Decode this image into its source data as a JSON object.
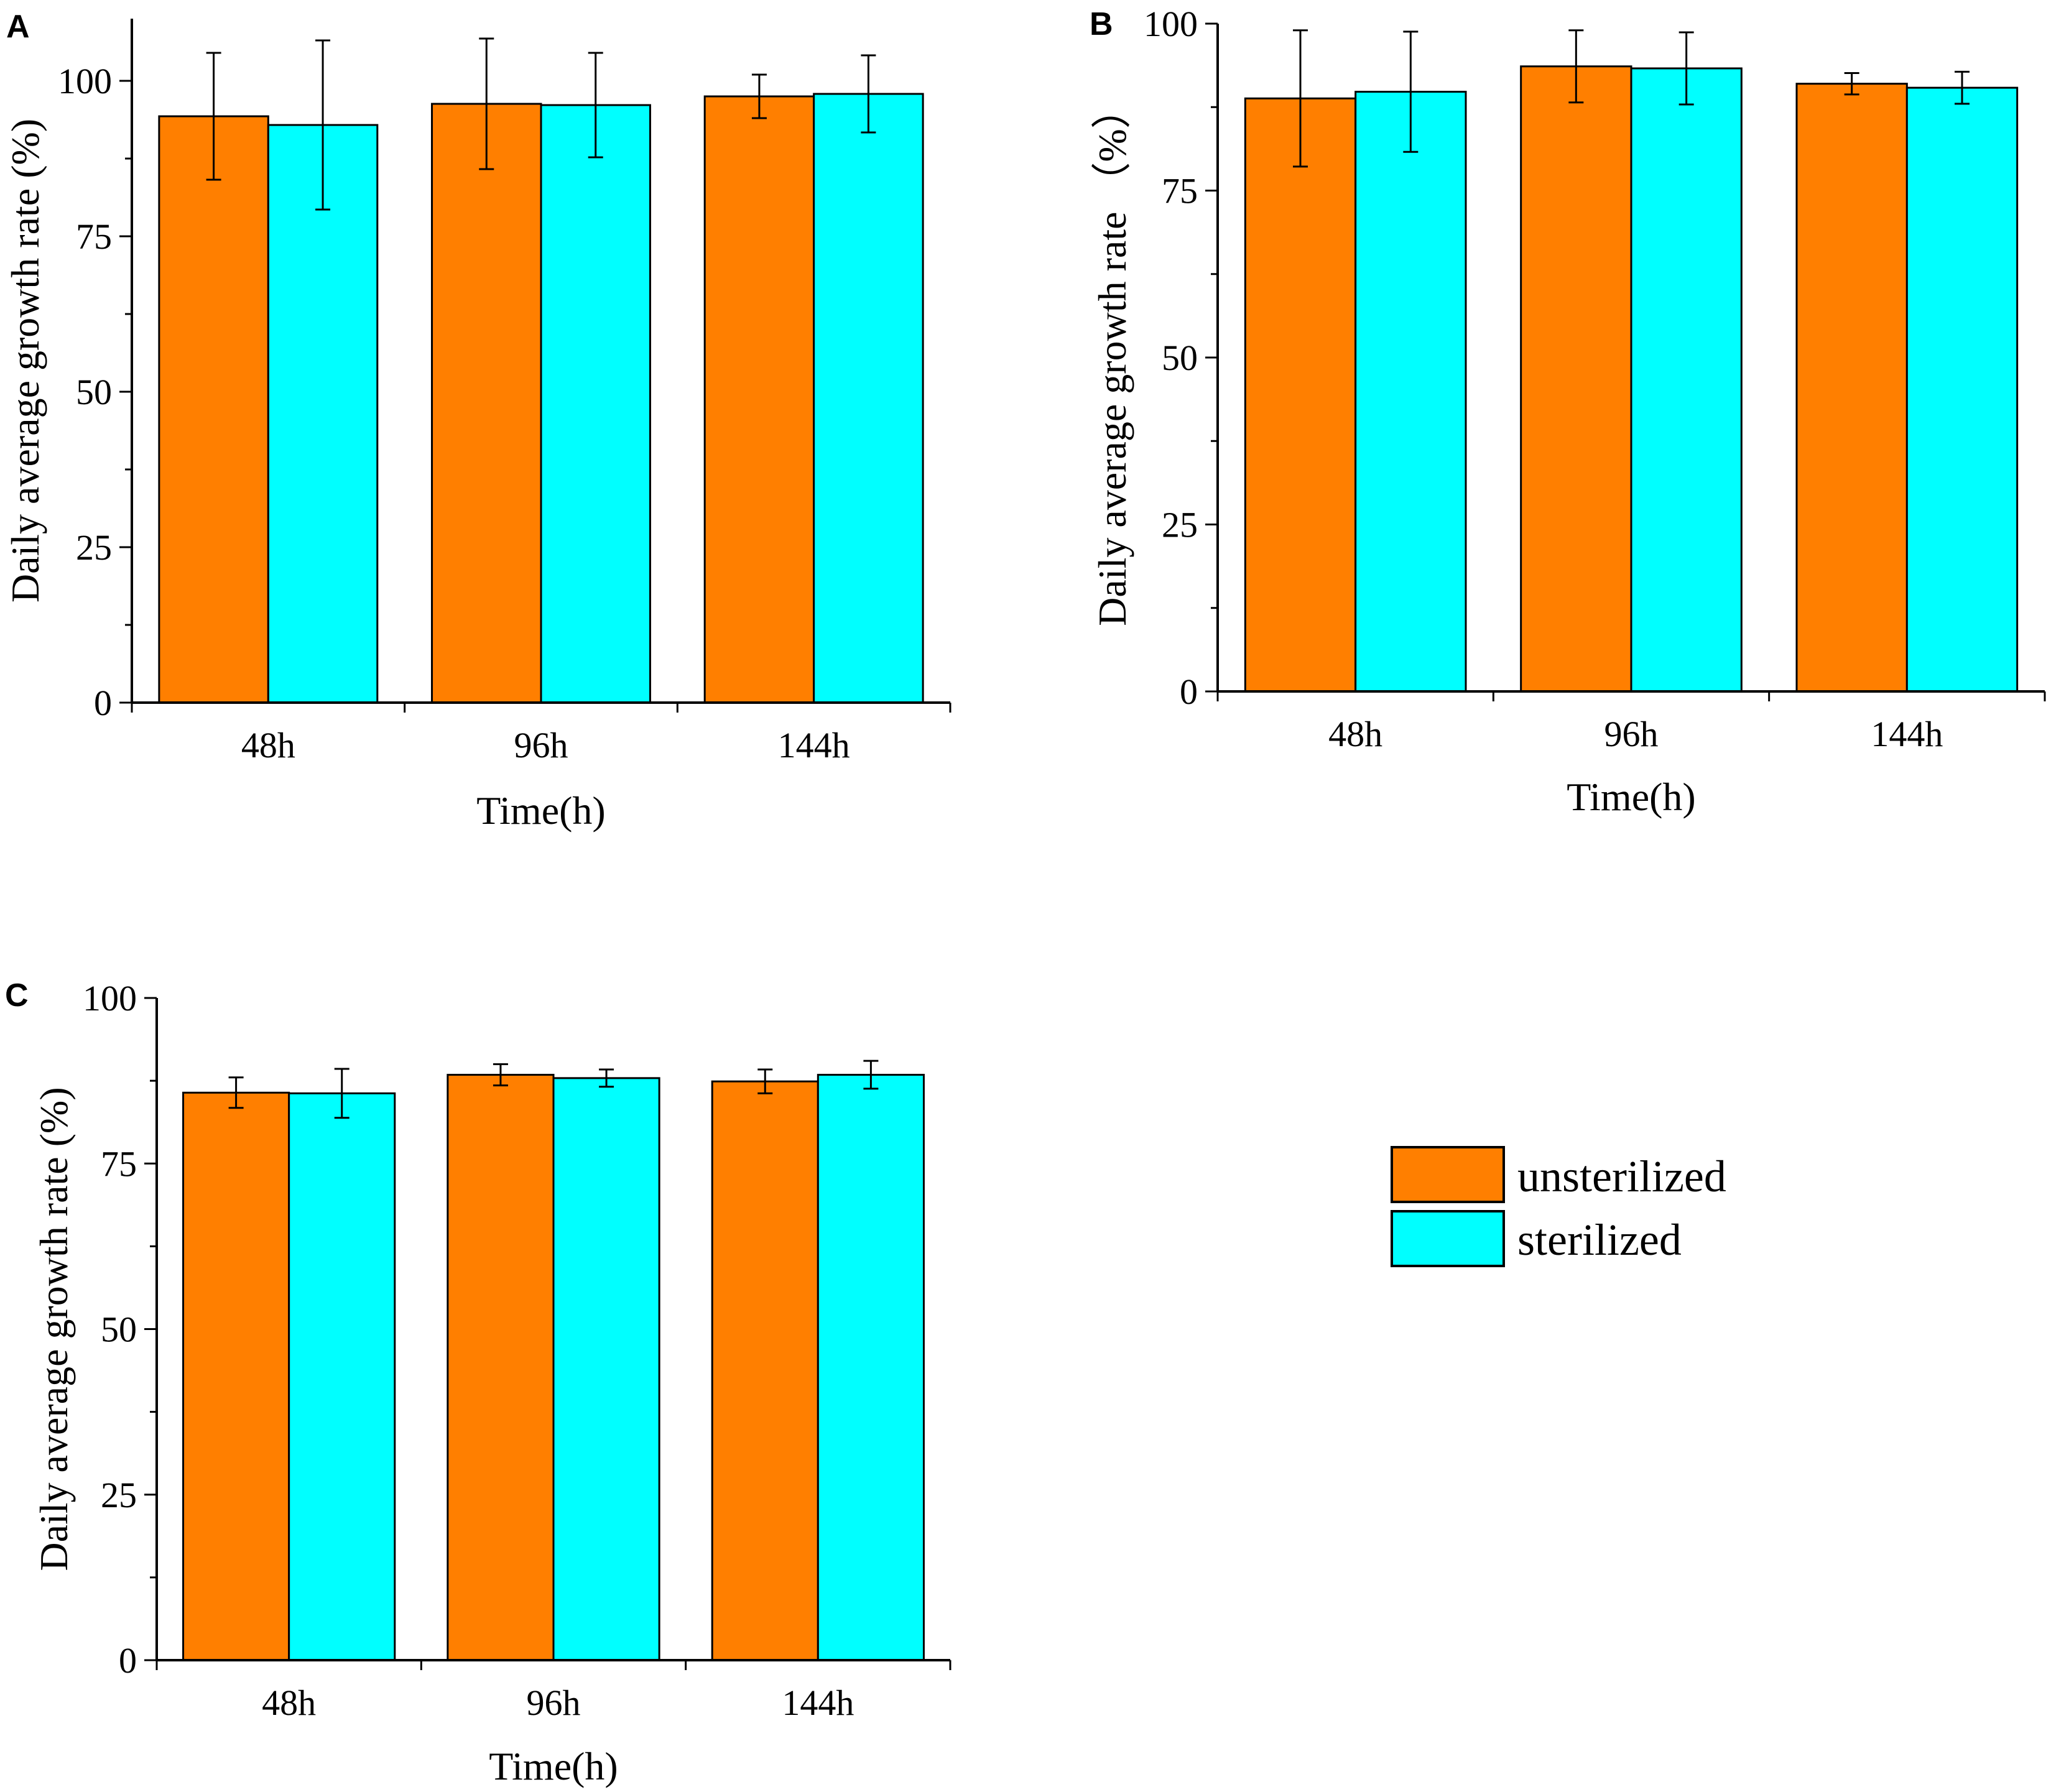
{
  "legend": {
    "entries": [
      {
        "label": "unsterilized",
        "color": "#ff7f00"
      },
      {
        "label": "sterilized",
        "color": "#00ffff"
      }
    ]
  },
  "chart_data": [
    {
      "panel": "A",
      "type": "bar",
      "categories": [
        "48h",
        "96h",
        "144h"
      ],
      "series": [
        {
          "name": "unsterilized",
          "color": "#ff7f00",
          "values": [
            94.3,
            96.3,
            97.5
          ],
          "errors": [
            10.2,
            10.5,
            3.5
          ]
        },
        {
          "name": "sterilized",
          "color": "#00ffff",
          "values": [
            92.9,
            96.1,
            97.9
          ],
          "errors": [
            13.6,
            8.4,
            6.2
          ]
        }
      ],
      "xlabel": "Time(h)",
      "ylabel": "Daily average growth rate (%)",
      "ylim": [
        0,
        110
      ],
      "yticks": [
        0,
        25,
        50,
        75,
        100
      ]
    },
    {
      "panel": "B",
      "type": "bar",
      "categories": [
        "48h",
        "96h",
        "144h"
      ],
      "series": [
        {
          "name": "unsterilized",
          "color": "#ff7f00",
          "values": [
            88.8,
            93.6,
            91.0
          ],
          "errors": [
            10.2,
            5.4,
            1.6
          ]
        },
        {
          "name": "sterilized",
          "color": "#00ffff",
          "values": [
            89.8,
            93.3,
            90.4
          ],
          "errors": [
            9.0,
            5.4,
            2.4
          ]
        }
      ],
      "xlabel": "Time(h)",
      "ylabel": "Daily average growth rate （%）",
      "ylim": [
        0,
        100
      ],
      "yticks": [
        0,
        25,
        50,
        75,
        100
      ]
    },
    {
      "panel": "C",
      "type": "bar",
      "categories": [
        "48h",
        "96h",
        "144h"
      ],
      "series": [
        {
          "name": "unsterilized",
          "color": "#ff7f00",
          "values": [
            85.7,
            88.4,
            87.4
          ],
          "errors": [
            2.3,
            1.6,
            1.8
          ]
        },
        {
          "name": "sterilized",
          "color": "#00ffff",
          "values": [
            85.6,
            87.9,
            88.4
          ],
          "errors": [
            3.7,
            1.3,
            2.1
          ]
        }
      ],
      "xlabel": "Time(h)",
      "ylabel": "Daily average growth rate (%)",
      "ylim": [
        0,
        100
      ],
      "yticks": [
        0,
        25,
        50,
        75,
        100
      ]
    }
  ]
}
